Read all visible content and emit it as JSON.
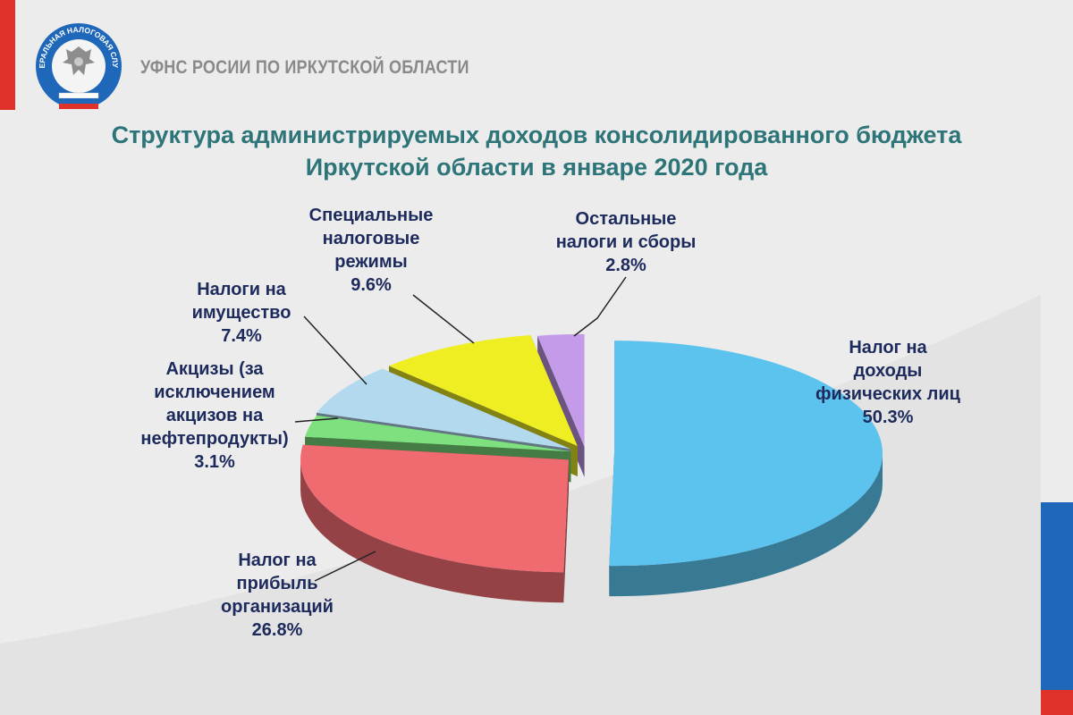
{
  "header": {
    "org_name": "УФНС РОСИИ ПО ИРКУТСКОЙ ОБЛАСТИ",
    "logo_text": "ФЕДЕРАЛЬНАЯ НАЛОГОВАЯ СЛУЖБА"
  },
  "colors": {
    "accent_red": "#e0312b",
    "accent_blue": "#1f67b8",
    "title": "#2d7578",
    "label": "#1d2a5c"
  },
  "chart_data": {
    "type": "pie",
    "style": "3d-exploded",
    "title": [
      "Структура администрируемых доходов консолидированного бюджета",
      "Иркутской области в январе 2020 года"
    ],
    "unit": "%",
    "slices": [
      {
        "name": "Налог на доходы физических лиц",
        "value": 50.3,
        "label_lines": [
          "Налог на",
          "доходы",
          "физических  лиц"
        ],
        "value_label": "50.3%",
        "color": "#5bc3ee"
      },
      {
        "name": "Налог на прибыль организаций",
        "value": 26.8,
        "label_lines": [
          "Налог на",
          "прибыль",
          "организаций"
        ],
        "value_label": "26.8%",
        "color": "#ef6b70"
      },
      {
        "name": "Акцизы (за исключением акцизов на нефтепродукты)",
        "value": 3.1,
        "label_lines": [
          "Акцизы (за",
          "исключением",
          "акцизов на",
          "нефтепродукты)"
        ],
        "value_label": "3.1%",
        "color": "#7ee07e"
      },
      {
        "name": "Налоги на имущество",
        "value": 7.4,
        "label_lines": [
          "Налоги на",
          "имущество"
        ],
        "value_label": "7.4%",
        "color": "#b3d9ee"
      },
      {
        "name": "Специальные налоговые режимы",
        "value": 9.6,
        "label_lines": [
          "Специальные",
          "налоговые",
          "режимы"
        ],
        "value_label": "9.6%",
        "color": "#eeee22"
      },
      {
        "name": "Остальные налоги и сборы",
        "value": 2.8,
        "label_lines": [
          "Остальные",
          "налоги и сборы"
        ],
        "value_label": "2.8%",
        "color": "#c39be8"
      }
    ]
  }
}
